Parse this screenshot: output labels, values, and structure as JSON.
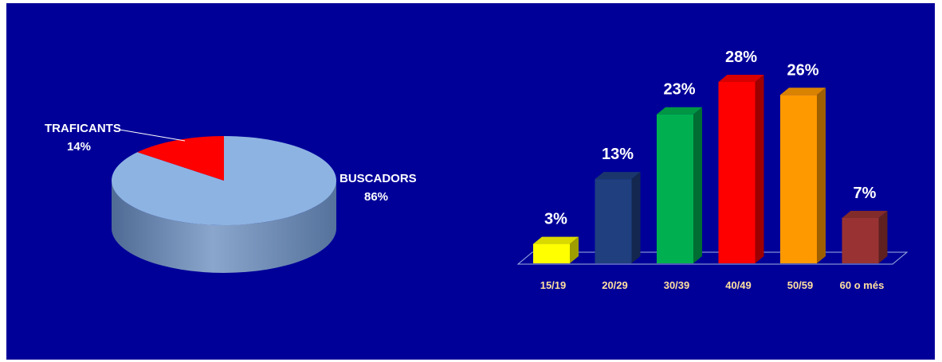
{
  "chart_data": [
    {
      "type": "pie",
      "labels": [
        "BUSCADORS",
        "TRAFICANTS"
      ],
      "values": [
        86,
        14
      ],
      "value_labels": [
        "86%",
        "14%"
      ],
      "colors": [
        "#8DB3E2",
        "#FF0000"
      ],
      "style": "3d"
    },
    {
      "type": "bar",
      "categories": [
        "15/19",
        "20/29",
        "30/39",
        "40/49",
        "50/59",
        "60 o més"
      ],
      "values": [
        3,
        13,
        23,
        28,
        26,
        7
      ],
      "value_labels": [
        "3%",
        "13%",
        "23%",
        "28%",
        "26%",
        "7%"
      ],
      "colors": [
        "#FFFF00",
        "#1F3F7F",
        "#00B050",
        "#FF0000",
        "#FF9900",
        "#993333"
      ],
      "ylim": [
        0,
        28
      ],
      "grid": false,
      "style": "3d"
    }
  ]
}
